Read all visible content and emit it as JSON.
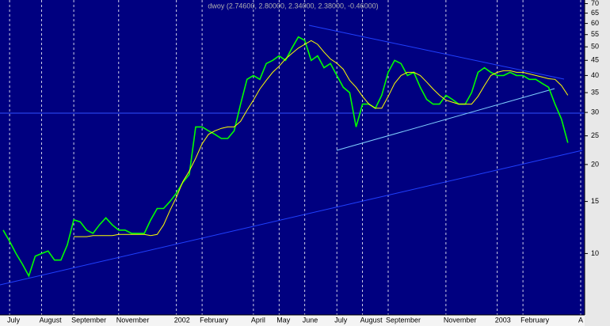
{
  "chart_data": {
    "type": "line",
    "title": "dwoy (2.74600, 2.80000, 2.34000, 2.38000, -0.46000)",
    "categories": [
      null,
      "July",
      null,
      null,
      null,
      null,
      "August",
      null,
      null,
      null,
      null,
      "September",
      null,
      null,
      null,
      null,
      null,
      null,
      "November",
      null,
      null,
      null,
      null,
      null,
      null,
      null,
      null,
      "2002",
      null,
      null,
      null,
      "February",
      null,
      null,
      null,
      null,
      null,
      null,
      null,
      "April",
      null,
      null,
      null,
      "May",
      null,
      null,
      null,
      "June",
      null,
      null,
      null,
      null,
      "July",
      null,
      null,
      null,
      "August",
      null,
      null,
      null,
      "September",
      null,
      null,
      null,
      null,
      null,
      null,
      null,
      null,
      "November",
      null,
      null,
      null,
      null,
      null,
      null,
      null,
      "2003",
      null,
      null,
      null,
      "February",
      null,
      null,
      null,
      null,
      null,
      null,
      null,
      null,
      "A"
    ],
    "series": [
      {
        "name": "price",
        "color": "#00ff00",
        "values": [
          12,
          11,
          10,
          9.2,
          8.4,
          9.8,
          10,
          10.2,
          9.5,
          9.5,
          10.7,
          13,
          12.8,
          12,
          11.7,
          12.5,
          13.2,
          12.5,
          12,
          12,
          11.7,
          11.7,
          11.7,
          13,
          14.2,
          14.2,
          15,
          16,
          17.4,
          18.5,
          26.8,
          26.8,
          26,
          25.3,
          24.5,
          24.5,
          26,
          32,
          38.8,
          40,
          38.8,
          43.9,
          45,
          46.6,
          45,
          49.5,
          54,
          52.6,
          45,
          46.6,
          42.5,
          43.9,
          40,
          36.5,
          35,
          26.8,
          32,
          32,
          31,
          34.3,
          41,
          45,
          43.9,
          40,
          41,
          36.5,
          33.2,
          32,
          32,
          34.3,
          33.2,
          32,
          32,
          35,
          41,
          42.5,
          41,
          40,
          40,
          41,
          40,
          40,
          38.8,
          38.8,
          37.6,
          36.5,
          32,
          28.5,
          23.7,
          null,
          null
        ]
      },
      {
        "name": "moving average",
        "color": "#ffff00",
        "values": [
          null,
          null,
          null,
          null,
          null,
          null,
          null,
          null,
          null,
          null,
          null,
          11.4,
          11.4,
          11.4,
          11.5,
          11.5,
          11.5,
          11.5,
          11.6,
          11.6,
          11.6,
          11.6,
          11.6,
          11.5,
          11.6,
          12.5,
          14,
          15.5,
          17.5,
          19,
          21,
          23.5,
          25.3,
          26,
          26.5,
          26.8,
          26.8,
          28,
          30.5,
          33,
          36,
          38.5,
          41,
          43,
          45.5,
          47.5,
          49.5,
          51,
          52.5,
          51,
          48,
          45.5,
          44,
          42,
          38.5,
          36.5,
          34,
          32,
          31,
          31,
          34,
          37.6,
          40,
          41,
          41,
          40,
          38,
          36,
          34.3,
          33,
          32.5,
          32,
          32,
          32,
          34,
          37,
          40,
          41,
          41.5,
          41.5,
          41,
          41,
          40.5,
          40,
          39.5,
          39,
          38.8,
          37,
          34.3,
          null,
          null
        ]
      }
    ],
    "ylim": [
      6.2,
      72
    ],
    "yticks": [
      10,
      15,
      20,
      25,
      30,
      35,
      40,
      45,
      50,
      55,
      60,
      65,
      70
    ],
    "log_scale": true
  }
}
